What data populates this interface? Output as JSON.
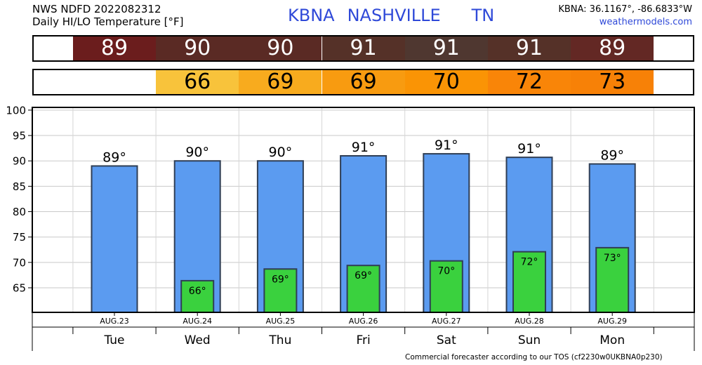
{
  "header": {
    "title_line1": "NWS NDFD 2022082312",
    "title_line2": "Daily HI/LO Temperature [°F]",
    "station": "KBNA",
    "city": "NASHVILLE",
    "state": "TN",
    "coords": "KBNA: 36.1167°, -86.6833°W",
    "website": "weathermodels.com"
  },
  "hi_strip": {
    "values": [
      "89",
      "90",
      "90",
      "91",
      "91",
      "91",
      "89"
    ],
    "colors": [
      "#6b1d1d",
      "#5a2a24",
      "#5a2a24",
      "#553128",
      "#4f3730",
      "#553128",
      "#632824"
    ]
  },
  "lo_strip": {
    "values": [
      "",
      "66",
      "69",
      "69",
      "70",
      "72",
      "73"
    ],
    "colors": [
      "#ffffff",
      "#f8c33b",
      "#f8ab1e",
      "#f89b10",
      "#fa9405",
      "#f98508",
      "#f78107"
    ]
  },
  "chart_data": {
    "type": "bar",
    "categories": [
      "Tue",
      "Wed",
      "Thu",
      "Fri",
      "Sat",
      "Sun",
      "Mon"
    ],
    "dates": [
      "AUG.23",
      "AUG.24",
      "AUG.25",
      "AUG.26",
      "AUG.27",
      "AUG.28",
      "AUG.29"
    ],
    "series": [
      {
        "name": "HI",
        "values": [
          89,
          90,
          90,
          91,
          91.4,
          90.7,
          89.4
        ],
        "labels": [
          "89°",
          "90°",
          "90°",
          "91°",
          "91°",
          "91°",
          "89°"
        ],
        "color": "#5b9bf0"
      },
      {
        "name": "LO",
        "values": [
          null,
          66.4,
          68.7,
          69.4,
          70.3,
          72.1,
          72.9
        ],
        "labels": [
          "",
          "66°",
          "69°",
          "69°",
          "70°",
          "72°",
          "73°"
        ],
        "color": "#3ad13e"
      }
    ],
    "y_ticks": [
      65,
      70,
      75,
      80,
      85,
      90,
      95,
      100
    ],
    "ylim": [
      60.3,
      100.4
    ],
    "grid": true
  },
  "footer": "Commercial forecaster according to our TOS (cf2230w0UKBNA0p230)"
}
